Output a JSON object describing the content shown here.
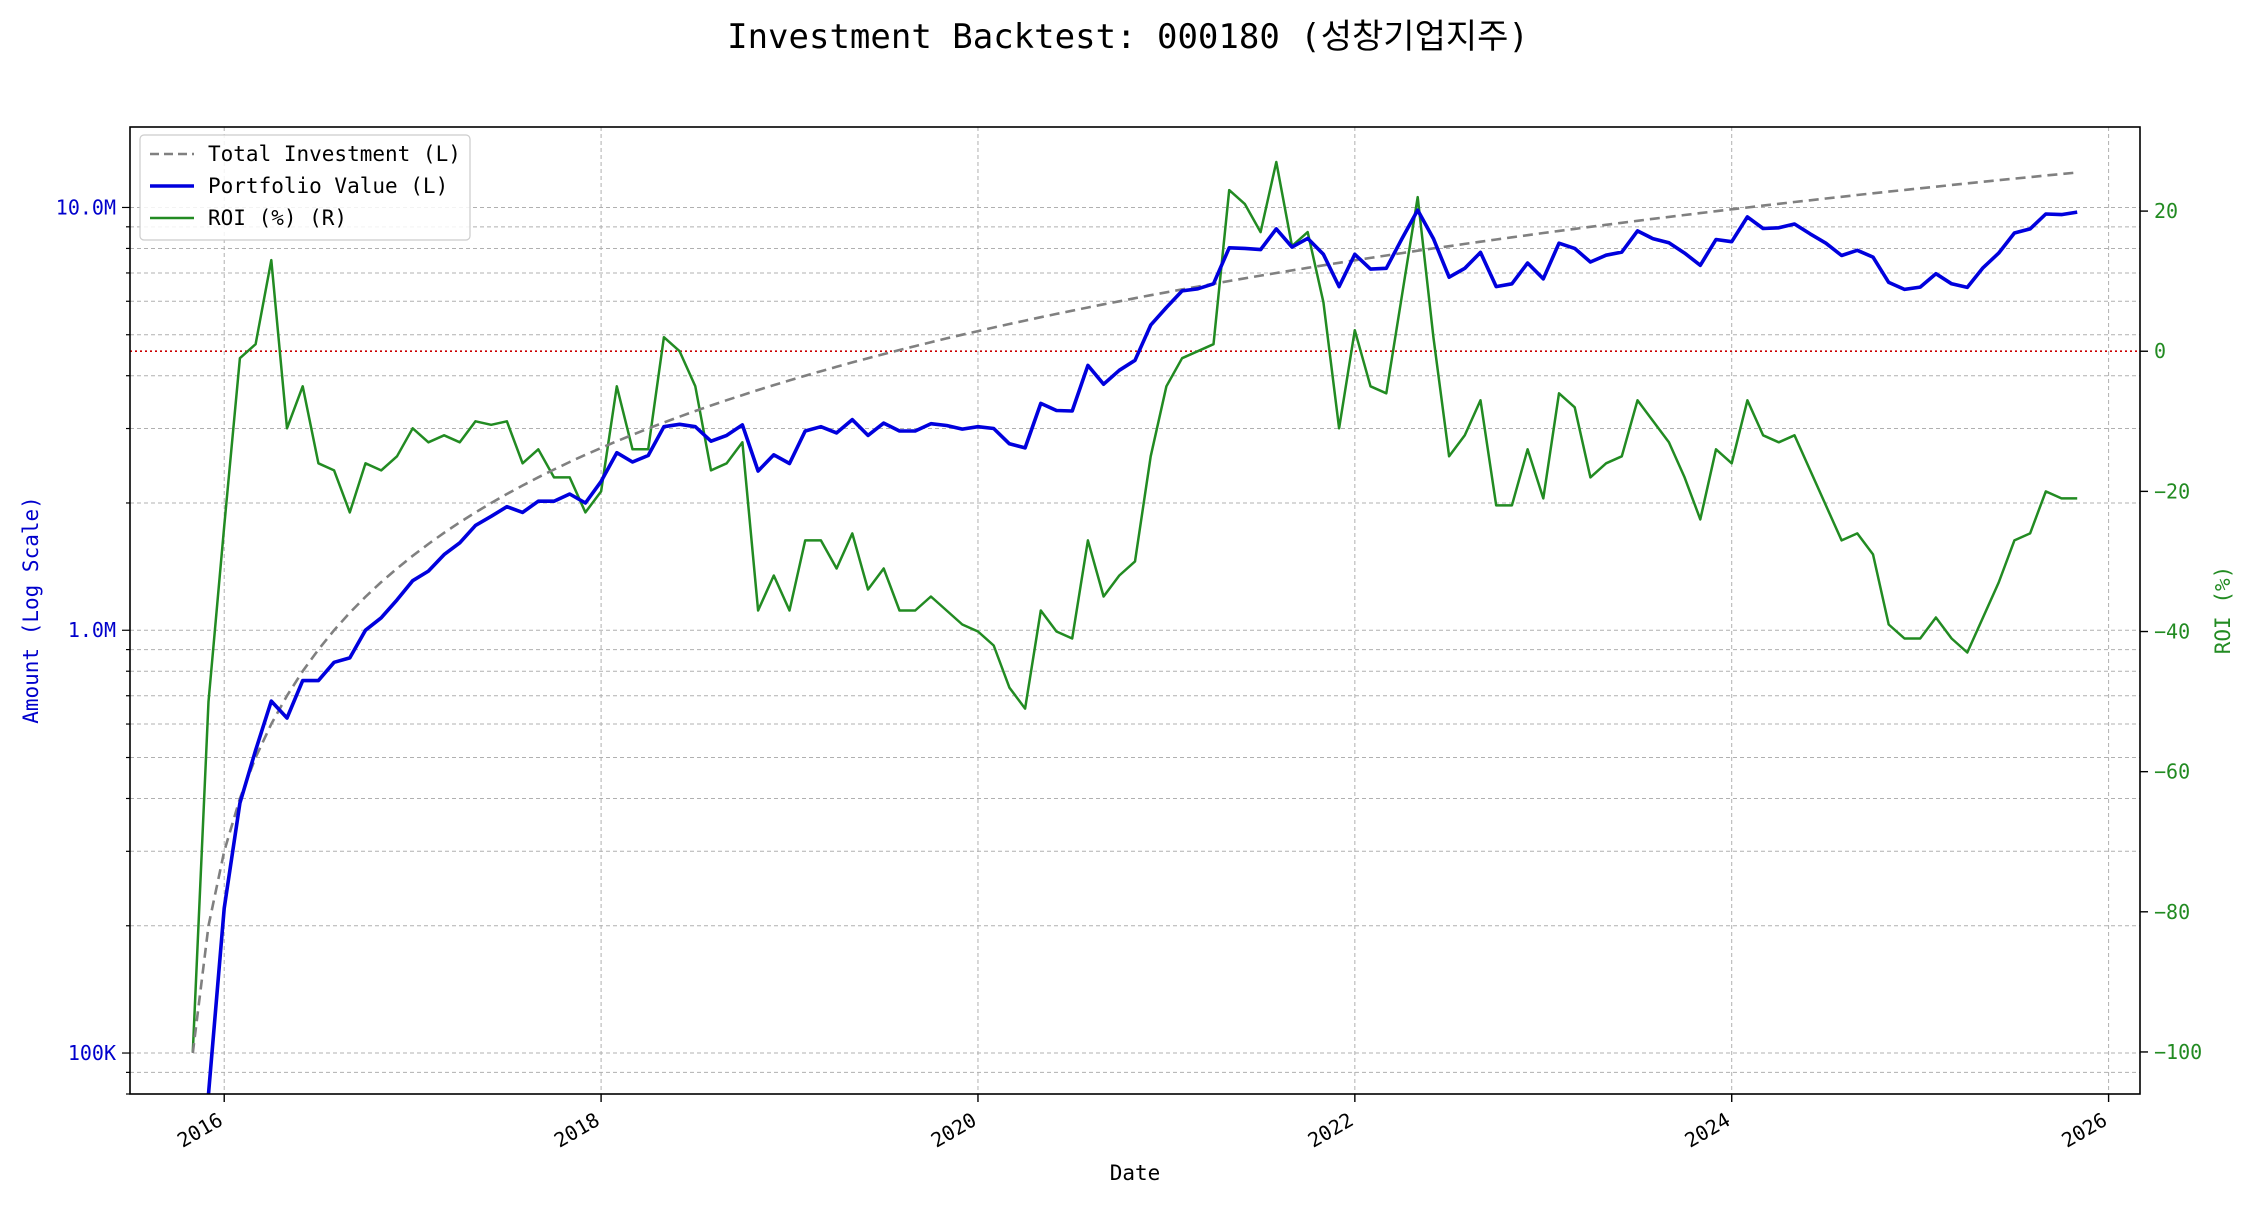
{
  "chart_data": {
    "type": "line",
    "title": "Investment Backtest: 000180 (성창기업지주)",
    "xlabel": "Date",
    "ylabel_left": "Amount (Log Scale)",
    "ylabel_right": "ROI (%)",
    "x_axis": {
      "type": "date",
      "range": [
        "2015-07-01",
        "2026-03-01"
      ],
      "ticks": [
        "2016",
        "2018",
        "2020",
        "2022",
        "2024",
        "2026"
      ]
    },
    "y_left": {
      "scale": "log",
      "range": [
        80000,
        15500000
      ],
      "ticks": [
        "100K",
        "1.0M",
        "10.0M"
      ]
    },
    "y_right": {
      "scale": "linear",
      "range": [
        -106,
        32
      ],
      "ticks": [
        "20",
        "0",
        "−20",
        "−40",
        "−60",
        "−80",
        "−100"
      ]
    },
    "grid": true,
    "legend_position": "top-left",
    "zero_reference_line": {
      "axis": "right",
      "value": 0,
      "color": "#cc0000"
    },
    "colors": {
      "total_investment": "#808080",
      "portfolio_value": "#0000dd",
      "roi": "#228b22",
      "left_axis_text": "#0000cc",
      "right_axis_text": "#228b22"
    },
    "legend": [
      "Total Investment (L)",
      "Portfolio Value (L)",
      "ROI (%) (R)"
    ],
    "series": [
      {
        "name": "Total Investment (L)",
        "axis": "left",
        "x": [
          "2015-11",
          "2015-12",
          "2016-01",
          "2016-02",
          "2016-03",
          "2016-04",
          "2016-05",
          "2016-06",
          "2016-07",
          "2016-08",
          "2016-09",
          "2016-10",
          "2016-11",
          "2016-12",
          "2017-01",
          "2017-02",
          "2017-03",
          "2017-04",
          "2017-05",
          "2017-06",
          "2017-07",
          "2017-08",
          "2017-09",
          "2017-10",
          "2017-11",
          "2017-12",
          "2018-01",
          "2018-02",
          "2018-03",
          "2018-04",
          "2018-05",
          "2018-06",
          "2018-07",
          "2018-08",
          "2018-09",
          "2018-10",
          "2018-11",
          "2018-12",
          "2019-01",
          "2019-02",
          "2019-03",
          "2019-04",
          "2019-05",
          "2019-06",
          "2019-07",
          "2019-08",
          "2019-09",
          "2019-10",
          "2019-11",
          "2019-12",
          "2020-01",
          "2020-02",
          "2020-03",
          "2020-04",
          "2020-05",
          "2020-06",
          "2020-07",
          "2020-08",
          "2020-09",
          "2020-10",
          "2020-11",
          "2020-12",
          "2021-01",
          "2021-02",
          "2021-03",
          "2021-04",
          "2021-05",
          "2021-06",
          "2021-07",
          "2021-08",
          "2021-09",
          "2021-10",
          "2021-11",
          "2021-12",
          "2022-01",
          "2022-02",
          "2022-03",
          "2022-04",
          "2022-05",
          "2022-06",
          "2022-07",
          "2022-08",
          "2022-09",
          "2022-10",
          "2022-11",
          "2022-12",
          "2023-01",
          "2023-02",
          "2023-03",
          "2023-04",
          "2023-05",
          "2023-06",
          "2023-07",
          "2023-08",
          "2023-09",
          "2023-10",
          "2023-11",
          "2023-12",
          "2024-01",
          "2024-02",
          "2024-03",
          "2024-04",
          "2024-05",
          "2024-06",
          "2024-07",
          "2024-08",
          "2024-09",
          "2024-10",
          "2024-11",
          "2024-12",
          "2025-01",
          "2025-02",
          "2025-03",
          "2025-04",
          "2025-05",
          "2025-06",
          "2025-07",
          "2025-08",
          "2025-09",
          "2025-10",
          "2025-11"
        ],
        "values": [
          100000,
          200000,
          300000,
          400000,
          500000,
          600000,
          700000,
          800000,
          900000,
          1000000,
          1100000,
          1200000,
          1300000,
          1400000,
          1500000,
          1600000,
          1700000,
          1800000,
          1900000,
          2000000,
          2100000,
          2200000,
          2300000,
          2400000,
          2500000,
          2600000,
          2700000,
          2800000,
          2900000,
          3000000,
          3100000,
          3200000,
          3300000,
          3400000,
          3500000,
          3600000,
          3700000,
          3800000,
          3900000,
          4000000,
          4100000,
          4200000,
          4300000,
          4400000,
          4500000,
          4600000,
          4700000,
          4800000,
          4900000,
          5000000,
          5100000,
          5200000,
          5300000,
          5400000,
          5500000,
          5600000,
          5700000,
          5800000,
          5900000,
          6000000,
          6100000,
          6200000,
          6300000,
          6400000,
          6500000,
          6600000,
          6700000,
          6800000,
          6900000,
          7000000,
          7100000,
          7200000,
          7300000,
          7400000,
          7500000,
          7600000,
          7700000,
          7800000,
          7900000,
          8000000,
          8100000,
          8200000,
          8300000,
          8400000,
          8500000,
          8600000,
          8700000,
          8800000,
          8900000,
          9000000,
          9100000,
          9200000,
          9300000,
          9400000,
          9500000,
          9600000,
          9700000,
          9800000,
          9900000,
          10000000,
          10100000,
          10200000,
          10300000,
          10400000,
          10500000,
          10600000,
          10700000,
          10800000,
          10900000,
          11000000,
          11100000,
          11200000,
          11300000,
          11400000,
          11500000,
          11600000,
          11700000,
          11800000,
          11900000,
          12000000,
          12100000
        ]
      },
      {
        "name": "Portfolio Value (L)",
        "axis": "left",
        "x": [
          "2015-12",
          "2016-01",
          "2016-02",
          "2016-03",
          "2016-04",
          "2016-05",
          "2016-06",
          "2016-07",
          "2016-08",
          "2016-09",
          "2016-10",
          "2016-11",
          "2016-12",
          "2017-01",
          "2017-02",
          "2017-03",
          "2017-04",
          "2017-05",
          "2017-06",
          "2017-07",
          "2017-08",
          "2017-09",
          "2017-10",
          "2017-11",
          "2017-12",
          "2018-01",
          "2018-02",
          "2018-03",
          "2018-04",
          "2018-05",
          "2018-06",
          "2018-07",
          "2018-08",
          "2018-09",
          "2018-10",
          "2018-11",
          "2018-12",
          "2019-01",
          "2019-02",
          "2019-03",
          "2019-04",
          "2019-05",
          "2019-06",
          "2019-07",
          "2019-08",
          "2019-09",
          "2019-10",
          "2019-11",
          "2019-12",
          "2020-01",
          "2020-02",
          "2020-03",
          "2020-04",
          "2020-05",
          "2020-06",
          "2020-07",
          "2020-08",
          "2020-09",
          "2020-10",
          "2020-11",
          "2020-12",
          "2021-01",
          "2021-02",
          "2021-03",
          "2021-04",
          "2021-05",
          "2021-06",
          "2021-07",
          "2021-08",
          "2021-09",
          "2021-10",
          "2021-11",
          "2021-12",
          "2022-01",
          "2022-02",
          "2022-03",
          "2022-04",
          "2022-05",
          "2022-06",
          "2022-07",
          "2022-08",
          "2022-09",
          "2022-10",
          "2022-11",
          "2022-12",
          "2023-01",
          "2023-02",
          "2023-03",
          "2023-04",
          "2023-05",
          "2023-06",
          "2023-07",
          "2023-08",
          "2023-09",
          "2023-10",
          "2023-11",
          "2023-12",
          "2024-01",
          "2024-02",
          "2024-03",
          "2024-04",
          "2024-05",
          "2024-06",
          "2024-07",
          "2024-08",
          "2024-09",
          "2024-10",
          "2024-11",
          "2024-12",
          "2025-01",
          "2025-02",
          "2025-03",
          "2025-04",
          "2025-05",
          "2025-06",
          "2025-07",
          "2025-08",
          "2025-09",
          "2025-10",
          "2025-11"
        ],
        "values": [
          80000,
          220000,
          390000,
          520000,
          680000,
          620000,
          760000,
          760000,
          840000,
          860000,
          1000000,
          1070000,
          1180000,
          1310000,
          1380000,
          1510000,
          1610000,
          1770000,
          1860000,
          1960000,
          1900000,
          2020000,
          2020000,
          2100000,
          2000000,
          2250000,
          2630000,
          2500000,
          2590000,
          3030000,
          3070000,
          3030000,
          2800000,
          2890000,
          3060000,
          2380000,
          2600000,
          2480000,
          2960000,
          3030000,
          2930000,
          3150000,
          2890000,
          3090000,
          2960000,
          2960000,
          3080000,
          3050000,
          2990000,
          3030000,
          3000000,
          2760000,
          2700000,
          3440000,
          3310000,
          3300000,
          4230000,
          3820000,
          4120000,
          4350000,
          5270000,
          5800000,
          6350000,
          6420000,
          6600000,
          8030000,
          8000000,
          7950000,
          8900000,
          8060000,
          8450000,
          7750000,
          6500000,
          7750000,
          7150000,
          7180000,
          8440000,
          9860000,
          8440000,
          6840000,
          7180000,
          7830000,
          6500000,
          6600000,
          7390000,
          6780000,
          8230000,
          8000000,
          7430000,
          7710000,
          7840000,
          8800000,
          8430000,
          8250000,
          7800000,
          7300000,
          8400000,
          8300000,
          9500000,
          8920000,
          8950000,
          9140000,
          8660000,
          8230000,
          7700000,
          7920000,
          7630000,
          6650000,
          6400000,
          6480000,
          6970000,
          6600000,
          6470000,
          7200000,
          7800000,
          8700000,
          8900000,
          9650000,
          9620000,
          9750000
        ]
      },
      {
        "name": "ROI (%) (R)",
        "axis": "right",
        "x": [
          "2015-11",
          "2015-12",
          "2016-01",
          "2016-02",
          "2016-03",
          "2016-04",
          "2016-05",
          "2016-06",
          "2016-07",
          "2016-08",
          "2016-09",
          "2016-10",
          "2016-11",
          "2016-12",
          "2017-01",
          "2017-02",
          "2017-03",
          "2017-04",
          "2017-05",
          "2017-06",
          "2017-07",
          "2017-08",
          "2017-09",
          "2017-10",
          "2017-11",
          "2017-12",
          "2018-01",
          "2018-02",
          "2018-03",
          "2018-04",
          "2018-05",
          "2018-06",
          "2018-07",
          "2018-08",
          "2018-09",
          "2018-10",
          "2018-11",
          "2018-12",
          "2019-01",
          "2019-02",
          "2019-03",
          "2019-04",
          "2019-05",
          "2019-06",
          "2019-07",
          "2019-08",
          "2019-09",
          "2019-10",
          "2019-11",
          "2019-12",
          "2020-01",
          "2020-02",
          "2020-03",
          "2020-04",
          "2020-05",
          "2020-06",
          "2020-07",
          "2020-08",
          "2020-09",
          "2020-10",
          "2020-11",
          "2020-12",
          "2021-01",
          "2021-02",
          "2021-03",
          "2021-04",
          "2021-05",
          "2021-06",
          "2021-07",
          "2021-08",
          "2021-09",
          "2021-10",
          "2021-11",
          "2021-12",
          "2022-01",
          "2022-02",
          "2022-03",
          "2022-04",
          "2022-05",
          "2022-06",
          "2022-07",
          "2022-08",
          "2022-09",
          "2022-10",
          "2022-11",
          "2022-12",
          "2023-01",
          "2023-02",
          "2023-03",
          "2023-04",
          "2023-05",
          "2023-06",
          "2023-07",
          "2023-08",
          "2023-09",
          "2023-10",
          "2023-11",
          "2023-12",
          "2024-01",
          "2024-02",
          "2024-03",
          "2024-04",
          "2024-05",
          "2024-06",
          "2024-07",
          "2024-08",
          "2024-09",
          "2024-10",
          "2024-11",
          "2024-12",
          "2025-01",
          "2025-02",
          "2025-03",
          "2025-04",
          "2025-05",
          "2025-06",
          "2025-07",
          "2025-08",
          "2025-09",
          "2025-10",
          "2025-11"
        ],
        "values": [
          -100,
          -50,
          -25,
          -1,
          1,
          13,
          -11,
          -5,
          -16,
          -17,
          -23,
          -16,
          -17,
          -15,
          -11,
          -13,
          -12,
          -13,
          -10,
          -10.5,
          -10,
          -16,
          -14,
          -18,
          -18,
          -23,
          -20,
          -5,
          -14,
          -14,
          2,
          0,
          -5,
          -17,
          -16,
          -13,
          -37,
          -32,
          -37,
          -27,
          -27,
          -31,
          -26,
          -34,
          -31,
          -37,
          -37,
          -35,
          -37,
          -39,
          -40,
          -42,
          -48,
          -51,
          -37,
          -40,
          -41,
          -27,
          -35,
          -32,
          -30,
          -15,
          -5,
          -1,
          0,
          1,
          23,
          21,
          17,
          27,
          15,
          17,
          7,
          -11,
          3,
          -5,
          -6,
          8,
          22,
          2,
          -15,
          -12,
          -7,
          -22,
          -22,
          -14,
          -21,
          -6,
          -8,
          -18,
          -16,
          -15,
          -7,
          -10,
          -13,
          -18,
          -24,
          -14,
          -16,
          -7,
          -12,
          -13,
          -12,
          -17,
          -22,
          -27,
          -26,
          -29,
          -39,
          -41,
          -41,
          -38,
          -41,
          -43,
          -38,
          -33,
          -27,
          -26,
          -20,
          -21,
          -21
        ]
      }
    ]
  }
}
